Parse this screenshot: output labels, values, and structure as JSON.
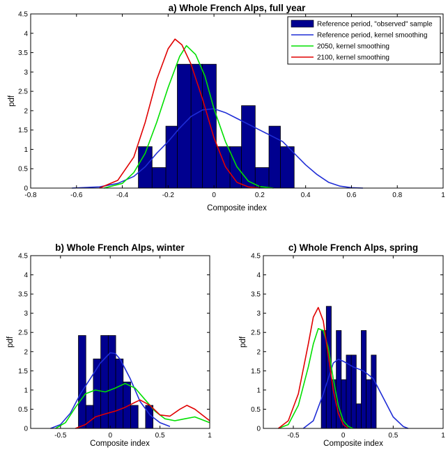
{
  "colors": {
    "observed": "#00008f",
    "reference_kernel": "#1f2dd6",
    "kernel_2050": "#00e000",
    "kernel_2100": "#e00000",
    "axes": "#000000"
  },
  "legend": {
    "placement": "top-right",
    "entries": [
      "Reference period, \"observed\" sample",
      "Reference period, kernel smoothing",
      "2050, kernel smoothing",
      "2100, kernel smoothing"
    ]
  },
  "chart_data": [
    {
      "id": "a",
      "type": "bar",
      "title": "a) Whole French Alps, full year",
      "xlabel": "Composite index",
      "ylabel": "pdf",
      "xlim": [
        -0.8,
        1
      ],
      "ylim": [
        0,
        4.5
      ],
      "xticks": [
        "-0.8",
        "-0.6",
        "-0.4",
        "-0.2",
        "0",
        "0.2",
        "0.4",
        "0.6",
        "0.8",
        "1"
      ],
      "yticks": [
        "0",
        "0.5",
        "1",
        "1.5",
        "2",
        "2.5",
        "3",
        "3.5",
        "4",
        "4.5"
      ],
      "grid": false,
      "bars": [
        {
          "x0": -0.33,
          "x1": -0.27,
          "value": 1.07
        },
        {
          "x0": -0.27,
          "x1": -0.21,
          "value": 0.53
        },
        {
          "x0": -0.21,
          "x1": -0.16,
          "value": 1.6
        },
        {
          "x0": -0.16,
          "x1": -0.1,
          "value": 3.2
        },
        {
          "x0": -0.1,
          "x1": -0.05,
          "value": 3.2
        },
        {
          "x0": -0.05,
          "x1": 0.01,
          "value": 3.2
        },
        {
          "x0": 0.01,
          "x1": 0.07,
          "value": 1.07
        },
        {
          "x0": 0.07,
          "x1": 0.12,
          "value": 1.07
        },
        {
          "x0": 0.12,
          "x1": 0.18,
          "value": 2.13
        },
        {
          "x0": 0.18,
          "x1": 0.24,
          "value": 0.53
        },
        {
          "x0": 0.24,
          "x1": 0.29,
          "value": 1.6
        },
        {
          "x0": 0.29,
          "x1": 0.35,
          "value": 1.07
        }
      ],
      "series": [
        {
          "name": "Reference period, kernel smoothing",
          "color_key": "reference_kernel",
          "x": [
            -0.62,
            -0.5,
            -0.42,
            -0.35,
            -0.3,
            -0.25,
            -0.2,
            -0.15,
            -0.1,
            -0.05,
            0,
            0.05,
            0.1,
            0.2,
            0.3,
            0.35,
            0.4,
            0.45,
            0.5,
            0.55,
            0.6,
            0.65
          ],
          "y": [
            0,
            0.03,
            0.12,
            0.3,
            0.55,
            0.9,
            1.2,
            1.55,
            1.85,
            2.02,
            2.05,
            1.95,
            1.8,
            1.5,
            1.2,
            0.9,
            0.6,
            0.35,
            0.15,
            0.05,
            0.01,
            0
          ]
        },
        {
          "name": "2050, kernel smoothing",
          "color_key": "kernel_2050",
          "x": [
            -0.48,
            -0.4,
            -0.35,
            -0.3,
            -0.25,
            -0.2,
            -0.15,
            -0.12,
            -0.08,
            -0.04,
            0,
            0.05,
            0.1,
            0.15,
            0.2,
            0.26
          ],
          "y": [
            0,
            0.12,
            0.4,
            0.9,
            1.7,
            2.6,
            3.4,
            3.68,
            3.45,
            2.9,
            2.05,
            1.2,
            0.55,
            0.18,
            0.04,
            0
          ]
        },
        {
          "name": "2100, kernel smoothing",
          "color_key": "kernel_2100",
          "x": [
            -0.5,
            -0.42,
            -0.35,
            -0.3,
            -0.25,
            -0.2,
            -0.17,
            -0.14,
            -0.1,
            -0.05,
            0,
            0.05,
            0.1,
            0.15,
            0.2
          ],
          "y": [
            0,
            0.2,
            0.8,
            1.7,
            2.8,
            3.6,
            3.85,
            3.7,
            3.2,
            2.3,
            1.3,
            0.55,
            0.15,
            0.03,
            0
          ]
        }
      ]
    },
    {
      "id": "b",
      "type": "bar",
      "title": "b) Whole French Alps, winter",
      "xlabel": "Composite index",
      "ylabel": "pdf",
      "xlim": [
        -0.8,
        1
      ],
      "ylim": [
        0,
        4.5
      ],
      "xticks": [
        "-0.5",
        "0",
        "0.5",
        "1"
      ],
      "yticks": [
        "0",
        "0.5",
        "1",
        "1.5",
        "2",
        "2.5",
        "3",
        "3.5",
        "4",
        "4.5"
      ],
      "grid": false,
      "bars": [
        {
          "x0": -0.32,
          "x1": -0.245,
          "value": 2.42
        },
        {
          "x0": -0.245,
          "x1": -0.17,
          "value": 0.6
        },
        {
          "x0": -0.17,
          "x1": -0.095,
          "value": 1.81
        },
        {
          "x0": -0.095,
          "x1": -0.02,
          "value": 2.42
        },
        {
          "x0": -0.02,
          "x1": 0.055,
          "value": 2.42
        },
        {
          "x0": 0.055,
          "x1": 0.13,
          "value": 1.81
        },
        {
          "x0": 0.13,
          "x1": 0.205,
          "value": 1.21
        },
        {
          "x0": 0.205,
          "x1": 0.28,
          "value": 0.6
        },
        {
          "x0": 0.355,
          "x1": 0.43,
          "value": 0.6
        }
      ],
      "series": [
        {
          "name": "Reference period, kernel smoothing",
          "color_key": "reference_kernel",
          "x": [
            -0.6,
            -0.5,
            -0.4,
            -0.3,
            -0.2,
            -0.1,
            0,
            0.05,
            0.1,
            0.2,
            0.3,
            0.4,
            0.5,
            0.6
          ],
          "y": [
            0,
            0.1,
            0.4,
            0.9,
            1.3,
            1.7,
            1.97,
            1.95,
            1.8,
            1.3,
            0.7,
            0.35,
            0.15,
            0.05
          ]
        },
        {
          "name": "2050, kernel smoothing",
          "color_key": "kernel_2050",
          "x": [
            -0.55,
            -0.45,
            -0.35,
            -0.25,
            -0.15,
            -0.05,
            0.05,
            0.15,
            0.25,
            0.35,
            0.45,
            0.55,
            0.65,
            0.75,
            0.85,
            0.95,
            1.0
          ],
          "y": [
            0,
            0.15,
            0.55,
            0.9,
            1.0,
            0.95,
            1.05,
            1.17,
            1.05,
            0.75,
            0.45,
            0.25,
            0.2,
            0.25,
            0.3,
            0.2,
            0.15
          ]
        },
        {
          "name": "2100, kernel smoothing",
          "color_key": "kernel_2100",
          "x": [
            -0.35,
            -0.25,
            -0.15,
            -0.05,
            0.05,
            0.15,
            0.25,
            0.3,
            0.4,
            0.5,
            0.6,
            0.7,
            0.77,
            0.85,
            0.95,
            1.0
          ],
          "y": [
            0,
            0.1,
            0.3,
            0.38,
            0.45,
            0.55,
            0.68,
            0.74,
            0.6,
            0.35,
            0.32,
            0.5,
            0.6,
            0.5,
            0.3,
            0.2
          ]
        }
      ]
    },
    {
      "id": "c",
      "type": "bar",
      "title": "c) Whole French Alps, spring",
      "xlabel": "Composite index",
      "ylabel": "pdf",
      "xlim": [
        -0.8,
        1
      ],
      "ylim": [
        0,
        4.5
      ],
      "xticks": [
        "-0.5",
        "0",
        "0.5",
        "1"
      ],
      "yticks": [
        "0",
        "0.5",
        "1",
        "1.5",
        "2",
        "2.5",
        "3",
        "3.5",
        "4",
        "4.5"
      ],
      "grid": false,
      "bars": [
        {
          "x0": -0.22,
          "x1": -0.17,
          "value": 2.55
        },
        {
          "x0": -0.17,
          "x1": -0.12,
          "value": 3.18
        },
        {
          "x0": -0.12,
          "x1": -0.07,
          "value": 1.27
        },
        {
          "x0": -0.07,
          "x1": -0.02,
          "value": 2.55
        },
        {
          "x0": -0.02,
          "x1": 0.03,
          "value": 1.27
        },
        {
          "x0": 0.03,
          "x1": 0.08,
          "value": 1.91
        },
        {
          "x0": 0.08,
          "x1": 0.13,
          "value": 1.91
        },
        {
          "x0": 0.13,
          "x1": 0.18,
          "value": 0.64
        },
        {
          "x0": 0.18,
          "x1": 0.23,
          "value": 2.55
        },
        {
          "x0": 0.23,
          "x1": 0.28,
          "value": 1.27
        },
        {
          "x0": 0.28,
          "x1": 0.33,
          "value": 1.91
        }
      ],
      "series": [
        {
          "name": "Reference period, kernel smoothing",
          "color_key": "reference_kernel",
          "x": [
            -0.4,
            -0.3,
            -0.2,
            -0.1,
            -0.05,
            0,
            0.1,
            0.2,
            0.3,
            0.4,
            0.5,
            0.6,
            0.65
          ],
          "y": [
            0,
            0.2,
            0.9,
            1.7,
            1.8,
            1.75,
            1.6,
            1.5,
            1.3,
            0.8,
            0.3,
            0.05,
            0
          ]
        },
        {
          "name": "2050, kernel smoothing",
          "color_key": "kernel_2050",
          "x": [
            -0.65,
            -0.55,
            -0.45,
            -0.35,
            -0.3,
            -0.25,
            -0.2,
            -0.15,
            -0.1,
            -0.05,
            0,
            0.05,
            0.1
          ],
          "y": [
            0,
            0.1,
            0.6,
            1.6,
            2.2,
            2.6,
            2.55,
            2.1,
            1.3,
            0.6,
            0.2,
            0.05,
            0
          ]
        },
        {
          "name": "2100, kernel smoothing",
          "color_key": "kernel_2100",
          "x": [
            -0.65,
            -0.55,
            -0.45,
            -0.35,
            -0.3,
            -0.25,
            -0.2,
            -0.15,
            -0.1,
            -0.05,
            0,
            0.05
          ],
          "y": [
            0,
            0.2,
            0.9,
            2.2,
            2.9,
            3.15,
            2.8,
            1.9,
            1.0,
            0.4,
            0.1,
            0
          ]
        }
      ]
    }
  ]
}
